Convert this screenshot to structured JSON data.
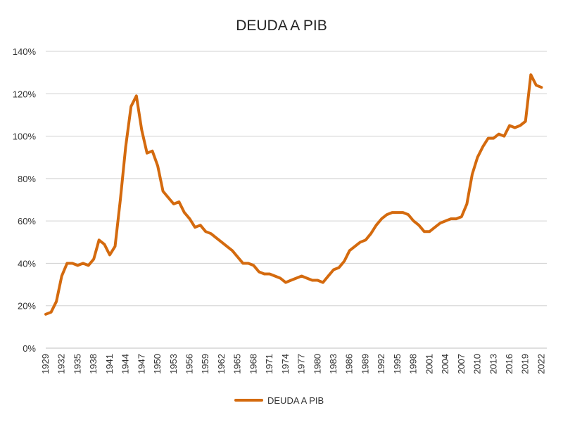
{
  "chart_data": {
    "type": "line",
    "title": "DEUDA A PIB",
    "xlabel": "",
    "ylabel": "",
    "ylim": [
      0,
      140
    ],
    "yticks": [
      0,
      20,
      40,
      60,
      80,
      100,
      120,
      140
    ],
    "ytick_labels": [
      "0%",
      "20%",
      "40%",
      "60%",
      "80%",
      "100%",
      "120%",
      "140%"
    ],
    "xlim": [
      1929,
      2023
    ],
    "xticks": [
      1929,
      1932,
      1935,
      1938,
      1941,
      1944,
      1947,
      1950,
      1953,
      1956,
      1959,
      1962,
      1965,
      1968,
      1971,
      1974,
      1977,
      1980,
      1983,
      1986,
      1989,
      1992,
      1995,
      1998,
      2001,
      2004,
      2007,
      2010,
      2013,
      2016,
      2019,
      2022
    ],
    "grid": true,
    "legend_position": "bottom",
    "colors": {
      "series": "#d46a0e"
    },
    "series": [
      {
        "name": "DEUDA A PIB",
        "x": [
          1929,
          1930,
          1931,
          1932,
          1933,
          1934,
          1935,
          1936,
          1937,
          1938,
          1939,
          1940,
          1941,
          1942,
          1943,
          1944,
          1945,
          1946,
          1947,
          1948,
          1949,
          1950,
          1951,
          1952,
          1953,
          1954,
          1955,
          1956,
          1957,
          1958,
          1959,
          1960,
          1961,
          1962,
          1963,
          1964,
          1965,
          1966,
          1967,
          1968,
          1969,
          1970,
          1971,
          1972,
          1973,
          1974,
          1975,
          1976,
          1977,
          1978,
          1979,
          1980,
          1981,
          1982,
          1983,
          1984,
          1985,
          1986,
          1987,
          1988,
          1989,
          1990,
          1991,
          1992,
          1993,
          1994,
          1995,
          1996,
          1997,
          1998,
          1999,
          2000,
          2001,
          2002,
          2003,
          2004,
          2005,
          2006,
          2007,
          2008,
          2009,
          2010,
          2011,
          2012,
          2013,
          2014,
          2015,
          2016,
          2017,
          2018,
          2019,
          2020,
          2021,
          2022,
          2023
        ],
        "values": [
          16,
          17,
          22,
          34,
          40,
          40,
          39,
          40,
          39,
          42,
          51,
          49,
          44,
          48,
          70,
          95,
          114,
          119,
          103,
          92,
          93,
          86,
          74,
          71,
          68,
          69,
          64,
          61,
          57,
          58,
          55,
          54,
          52,
          50,
          48,
          46,
          43,
          40,
          40,
          39,
          36,
          35,
          35,
          34,
          33,
          31,
          32,
          33,
          34,
          33,
          32,
          32,
          31,
          34,
          37,
          38,
          41,
          46,
          48,
          50,
          51,
          54,
          58,
          61,
          63,
          64,
          64,
          64,
          63,
          60,
          58,
          55,
          55,
          57,
          59,
          60,
          61,
          61,
          62,
          68,
          82,
          90,
          95,
          99,
          99,
          101,
          100,
          105,
          104,
          105,
          107,
          129,
          124,
          123,
          null
        ]
      }
    ]
  }
}
